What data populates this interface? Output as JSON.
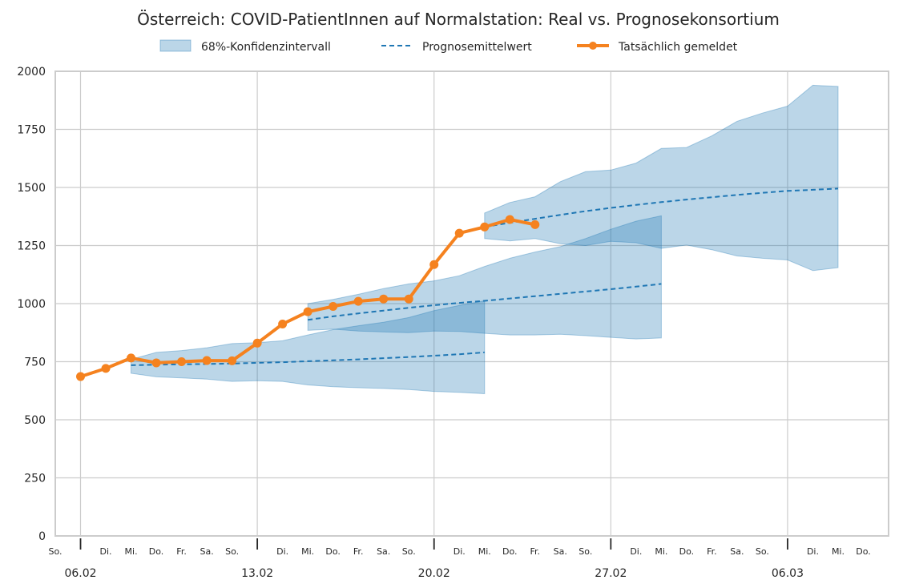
{
  "chart_data": {
    "type": "line",
    "title": "Österreich: COVID-PatientInnen auf Normalstation: Real vs. Prognosekonsortium",
    "xlabel": "",
    "ylabel": "",
    "ylim": [
      0,
      2000
    ],
    "xlim": [
      "2022-02-05",
      "2022-03-10"
    ],
    "yticks": [
      0,
      250,
      500,
      750,
      1000,
      1250,
      1500,
      1750,
      2000
    ],
    "grid": true,
    "legend_placement": "top-center",
    "colors": {
      "band": "#1f77b4",
      "mean": "#1f77b4",
      "actual": "#f5821f"
    },
    "legend": [
      "68%-Konfidenzintervall",
      "Prognosemittelwert",
      "Tatsächlich gemeldet"
    ],
    "major_ticks": [
      {
        "date": "2022-02-06",
        "label": "06.02"
      },
      {
        "date": "2022-02-13",
        "label": "13.02"
      },
      {
        "date": "2022-02-20",
        "label": "20.02"
      },
      {
        "date": "2022-02-27",
        "label": "27.02"
      },
      {
        "date": "2022-03-06",
        "label": "06.03"
      }
    ],
    "minor_ticks": [
      {
        "date": "2022-02-05",
        "label": "So."
      },
      {
        "date": "2022-02-07",
        "label": "Di."
      },
      {
        "date": "2022-02-08",
        "label": "Mi."
      },
      {
        "date": "2022-02-09",
        "label": "Do."
      },
      {
        "date": "2022-02-10",
        "label": "Fr."
      },
      {
        "date": "2022-02-11",
        "label": "Sa."
      },
      {
        "date": "2022-02-12",
        "label": "So."
      },
      {
        "date": "2022-02-14",
        "label": "Di."
      },
      {
        "date": "2022-02-15",
        "label": "Mi."
      },
      {
        "date": "2022-02-16",
        "label": "Do."
      },
      {
        "date": "2022-02-17",
        "label": "Fr."
      },
      {
        "date": "2022-02-18",
        "label": "Sa."
      },
      {
        "date": "2022-02-19",
        "label": "So."
      },
      {
        "date": "2022-02-21",
        "label": "Di."
      },
      {
        "date": "2022-02-22",
        "label": "Mi."
      },
      {
        "date": "2022-02-23",
        "label": "Do."
      },
      {
        "date": "2022-02-24",
        "label": "Fr."
      },
      {
        "date": "2022-02-25",
        "label": "Sa."
      },
      {
        "date": "2022-02-26",
        "label": "So."
      },
      {
        "date": "2022-02-28",
        "label": "Di."
      },
      {
        "date": "2022-03-01",
        "label": "Mi."
      },
      {
        "date": "2022-03-02",
        "label": "Do."
      },
      {
        "date": "2022-03-03",
        "label": "Fr."
      },
      {
        "date": "2022-03-04",
        "label": "Sa."
      },
      {
        "date": "2022-03-05",
        "label": "So."
      },
      {
        "date": "2022-03-07",
        "label": "Di."
      },
      {
        "date": "2022-03-08",
        "label": "Mi."
      },
      {
        "date": "2022-03-09",
        "label": "Do."
      }
    ],
    "forecasts": [
      {
        "x": [
          "2022-02-08",
          "2022-02-09",
          "2022-02-10",
          "2022-02-11",
          "2022-02-12",
          "2022-02-13",
          "2022-02-14",
          "2022-02-15",
          "2022-02-16",
          "2022-02-17",
          "2022-02-18",
          "2022-02-19",
          "2022-02-20",
          "2022-02-21",
          "2022-02-22"
        ],
        "mean": [
          735,
          737,
          739,
          740,
          742,
          745,
          748,
          752,
          756,
          760,
          765,
          770,
          776,
          782,
          790
        ],
        "lower": [
          700,
          685,
          680,
          675,
          665,
          668,
          665,
          650,
          642,
          638,
          635,
          630,
          622,
          618,
          612
        ],
        "upper": [
          760,
          790,
          798,
          810,
          828,
          832,
          840,
          865,
          888,
          905,
          920,
          940,
          970,
          992,
          1012
        ]
      },
      {
        "x": [
          "2022-02-15",
          "2022-02-16",
          "2022-02-17",
          "2022-02-18",
          "2022-02-19",
          "2022-02-20",
          "2022-02-21",
          "2022-02-22",
          "2022-02-23",
          "2022-02-24",
          "2022-02-25",
          "2022-02-26",
          "2022-02-27",
          "2022-02-28",
          "2022-03-01"
        ],
        "mean": [
          930,
          945,
          958,
          970,
          982,
          993,
          1003,
          1012,
          1022,
          1032,
          1042,
          1052,
          1062,
          1073,
          1085
        ],
        "lower": [
          885,
          890,
          882,
          878,
          875,
          882,
          880,
          872,
          865,
          865,
          868,
          862,
          855,
          848,
          852
        ],
        "upper": [
          1000,
          1018,
          1040,
          1065,
          1085,
          1098,
          1120,
          1160,
          1195,
          1222,
          1245,
          1280,
          1320,
          1355,
          1378
        ]
      },
      {
        "x": [
          "2022-02-22",
          "2022-02-23",
          "2022-02-24",
          "2022-02-25",
          "2022-02-26",
          "2022-02-27",
          "2022-02-28",
          "2022-03-01",
          "2022-03-02",
          "2022-03-03",
          "2022-03-04",
          "2022-03-05",
          "2022-03-06",
          "2022-03-07",
          "2022-03-08"
        ],
        "mean": [
          1330,
          1348,
          1365,
          1382,
          1398,
          1412,
          1425,
          1437,
          1448,
          1458,
          1468,
          1477,
          1485,
          1490,
          1495
        ],
        "lower": [
          1280,
          1270,
          1280,
          1258,
          1250,
          1268,
          1262,
          1238,
          1252,
          1232,
          1205,
          1195,
          1188,
          1142,
          1155
        ],
        "upper": [
          1390,
          1435,
          1460,
          1525,
          1568,
          1575,
          1605,
          1668,
          1672,
          1722,
          1785,
          1820,
          1850,
          1940,
          1935
        ]
      }
    ],
    "actual": {
      "x": [
        "2022-02-06",
        "2022-02-07",
        "2022-02-08",
        "2022-02-09",
        "2022-02-10",
        "2022-02-11",
        "2022-02-12",
        "2022-02-13",
        "2022-02-14",
        "2022-02-15",
        "2022-02-16",
        "2022-02-17",
        "2022-02-18",
        "2022-02-19",
        "2022-02-20",
        "2022-02-21",
        "2022-02-22",
        "2022-02-23",
        "2022-02-24"
      ],
      "values": [
        686,
        721,
        766,
        745,
        750,
        755,
        754,
        830,
        912,
        965,
        988,
        1010,
        1020,
        1020,
        1168,
        1303,
        1330,
        1362,
        1340
      ]
    }
  }
}
